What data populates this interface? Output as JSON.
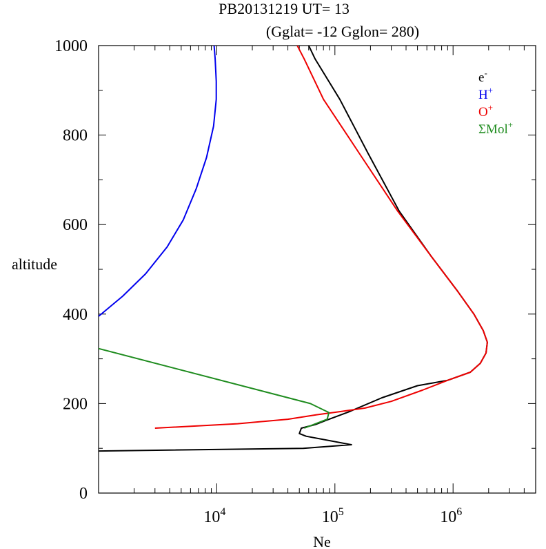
{
  "chart_data": {
    "type": "line",
    "title": "PB20131219   UT=  13",
    "subtitle": "(Gglat= -12   Gglon=  280)",
    "xlabel": "Ne",
    "ylabel": "altitude",
    "xscale": "log",
    "xlim": [
      1000,
      5000000
    ],
    "ylim": [
      0,
      1000
    ],
    "xticks": [
      {
        "base": "10",
        "exp": "4",
        "value": 10000
      },
      {
        "base": "10",
        "exp": "5",
        "value": 100000
      },
      {
        "base": "10",
        "exp": "6",
        "value": 1000000
      }
    ],
    "yticks": [
      "0",
      "200",
      "400",
      "600",
      "800",
      "1000"
    ],
    "legend_position": "top-right",
    "series": [
      {
        "name": "e-",
        "label_base": "e",
        "label_sup": "-",
        "color": "#000000",
        "points": [
          [
            1000,
            94
          ],
          [
            54000,
            100
          ],
          [
            138000,
            108
          ],
          [
            57000,
            127
          ],
          [
            50000,
            133
          ],
          [
            52000,
            145
          ],
          [
            68000,
            153
          ],
          [
            85000,
            163
          ],
          [
            130000,
            181
          ],
          [
            250000,
            213
          ],
          [
            500000,
            240
          ],
          [
            900000,
            252
          ],
          [
            1400000,
            270
          ],
          [
            1700000,
            290
          ],
          [
            1900000,
            313
          ],
          [
            1950000,
            337
          ],
          [
            1800000,
            363
          ],
          [
            1500000,
            400
          ],
          [
            1100000,
            450
          ],
          [
            650000,
            530
          ],
          [
            350000,
            630
          ],
          [
            190000,
            760
          ],
          [
            110000,
            880
          ],
          [
            68000,
            970
          ],
          [
            60000,
            1000
          ]
        ]
      },
      {
        "name": "H+",
        "label_base": "H",
        "label_sup": "+",
        "color": "#0000ee",
        "points": [
          [
            1000,
            395
          ],
          [
            1600,
            440
          ],
          [
            2500,
            490
          ],
          [
            3800,
            550
          ],
          [
            5200,
            610
          ],
          [
            6700,
            680
          ],
          [
            8200,
            750
          ],
          [
            9400,
            820
          ],
          [
            9900,
            880
          ],
          [
            9900,
            920
          ],
          [
            9700,
            970
          ],
          [
            9500,
            1000
          ]
        ]
      },
      {
        "name": "O+",
        "label_base": "O",
        "label_sup": "+",
        "color": "#ee0000",
        "points": [
          [
            3000,
            145
          ],
          [
            15000,
            155
          ],
          [
            40000,
            165
          ],
          [
            70000,
            175
          ],
          [
            110000,
            182
          ],
          [
            180000,
            190
          ],
          [
            300000,
            205
          ],
          [
            550000,
            230
          ],
          [
            900000,
            252
          ],
          [
            1400000,
            270
          ],
          [
            1700000,
            290
          ],
          [
            1900000,
            313
          ],
          [
            1950000,
            337
          ],
          [
            1800000,
            363
          ],
          [
            1500000,
            400
          ],
          [
            1100000,
            450
          ],
          [
            650000,
            530
          ],
          [
            340000,
            630
          ],
          [
            160000,
            760
          ],
          [
            80000,
            880
          ],
          [
            55000,
            970
          ],
          [
            48000,
            1000
          ]
        ]
      },
      {
        "name": "ΣMol+",
        "label_base": "ΣMol",
        "label_sup": "+",
        "color": "#1f8c1f",
        "points": [
          [
            1000,
            323
          ],
          [
            62000,
            200
          ],
          [
            89000,
            180
          ],
          [
            86000,
            165
          ],
          [
            55000,
            145
          ]
        ]
      }
    ]
  }
}
